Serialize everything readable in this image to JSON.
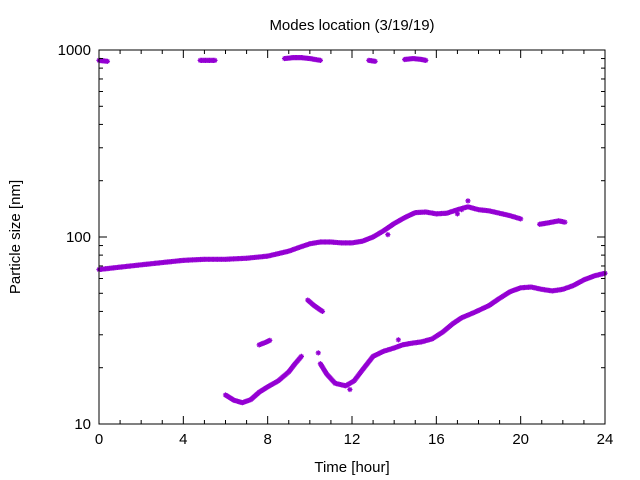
{
  "chart_data": {
    "type": "scatter",
    "title": "Modes location (3/19/19)",
    "xlabel": "Time [hour]",
    "ylabel": "Particle size [nm]",
    "xlim": [
      0,
      24
    ],
    "ylim": [
      10,
      1000
    ],
    "yscale": "log",
    "grid": false,
    "legend": "none",
    "marker_color": "#9400d3",
    "xticks": [
      0,
      4,
      8,
      12,
      16,
      20,
      24
    ],
    "xtick_labels": [
      "0",
      "4",
      "8",
      "12",
      "16",
      "20",
      "24"
    ],
    "yticks": [
      10,
      100,
      1000
    ],
    "ytick_labels": [
      "10",
      "100",
      "1000"
    ],
    "series": [
      {
        "segments": [
          [
            [
              0.0,
              880
            ],
            [
              0.4,
              870
            ]
          ],
          [
            [
              4.8,
              880
            ],
            [
              5.5,
              880
            ]
          ],
          [
            [
              8.8,
              900
            ],
            [
              9.2,
              910
            ],
            [
              9.6,
              910
            ],
            [
              10.0,
              900
            ],
            [
              10.5,
              880
            ]
          ],
          [
            [
              12.8,
              880
            ],
            [
              13.1,
              870
            ]
          ],
          [
            [
              14.5,
              890
            ],
            [
              14.9,
              900
            ],
            [
              15.3,
              890
            ],
            [
              15.5,
              880
            ]
          ]
        ]
      },
      {
        "segments": [
          [
            [
              0.0,
              67
            ],
            [
              1.0,
              69
            ],
            [
              2.0,
              71
            ],
            [
              3.0,
              73
            ],
            [
              4.0,
              75
            ],
            [
              5.0,
              76
            ],
            [
              6.0,
              76
            ],
            [
              7.0,
              77
            ],
            [
              8.0,
              79
            ],
            [
              9.0,
              84
            ],
            [
              9.5,
              88
            ],
            [
              10.0,
              92
            ],
            [
              10.5,
              94
            ],
            [
              11.0,
              94
            ],
            [
              11.5,
              93
            ],
            [
              12.0,
              93
            ],
            [
              12.5,
              95
            ],
            [
              13.0,
              100
            ],
            [
              13.5,
              108
            ],
            [
              14.0,
              118
            ],
            [
              14.5,
              127
            ],
            [
              15.0,
              135
            ],
            [
              15.5,
              136
            ],
            [
              16.0,
              133
            ],
            [
              16.5,
              134
            ],
            [
              17.0,
              140
            ],
            [
              17.5,
              145
            ],
            [
              18.0,
              140
            ],
            [
              18.5,
              138
            ],
            [
              19.0,
              134
            ],
            [
              19.5,
              130
            ],
            [
              20.0,
              125
            ]
          ],
          [
            [
              20.9,
              117
            ],
            [
              21.3,
              119
            ],
            [
              21.8,
              122
            ],
            [
              22.1,
              120
            ]
          ]
        ],
        "outliers": [
          [
            13.7,
            103
          ],
          [
            17.0,
            133
          ],
          [
            17.2,
            140
          ],
          [
            17.5,
            156
          ]
        ]
      },
      {
        "segments": [
          [
            [
              6.0,
              14.3
            ],
            [
              6.4,
              13.4
            ],
            [
              6.8,
              13.0
            ],
            [
              7.2,
              13.5
            ],
            [
              7.6,
              14.8
            ],
            [
              8.0,
              15.8
            ],
            [
              8.5,
              17.0
            ],
            [
              9.0,
              19.0
            ],
            [
              9.3,
              21.0
            ],
            [
              9.6,
              23.0
            ]
          ],
          [
            [
              7.6,
              26.5
            ],
            [
              7.9,
              27.3
            ],
            [
              8.1,
              28.0
            ]
          ],
          [
            [
              9.9,
              46
            ],
            [
              10.2,
              43
            ],
            [
              10.6,
              40
            ]
          ],
          [
            [
              10.5,
              21.0
            ],
            [
              10.8,
              18.5
            ],
            [
              11.2,
              16.5
            ],
            [
              11.7,
              16.0
            ],
            [
              12.1,
              17.0
            ],
            [
              12.5,
              19.5
            ],
            [
              13.0,
              23.0
            ],
            [
              13.5,
              24.5
            ],
            [
              14.0,
              25.5
            ],
            [
              14.4,
              26.5
            ],
            [
              14.8,
              27.0
            ],
            [
              15.3,
              27.5
            ],
            [
              15.8,
              28.5
            ],
            [
              16.3,
              31.0
            ],
            [
              16.8,
              34.5
            ],
            [
              17.2,
              37.0
            ],
            [
              17.8,
              39.5
            ],
            [
              18.5,
              43.0
            ],
            [
              19.0,
              47.0
            ],
            [
              19.5,
              51.0
            ],
            [
              20.0,
              53.5
            ],
            [
              20.5,
              54.0
            ],
            [
              21.0,
              52.5
            ],
            [
              21.5,
              51.5
            ],
            [
              22.0,
              52.5
            ],
            [
              22.5,
              55.0
            ],
            [
              23.0,
              59.0
            ],
            [
              23.5,
              62.0
            ],
            [
              24.0,
              64.0
            ]
          ]
        ],
        "outliers": [
          [
            10.4,
            24.0
          ],
          [
            11.9,
            15.3
          ],
          [
            14.2,
            28.2
          ]
        ]
      }
    ]
  }
}
